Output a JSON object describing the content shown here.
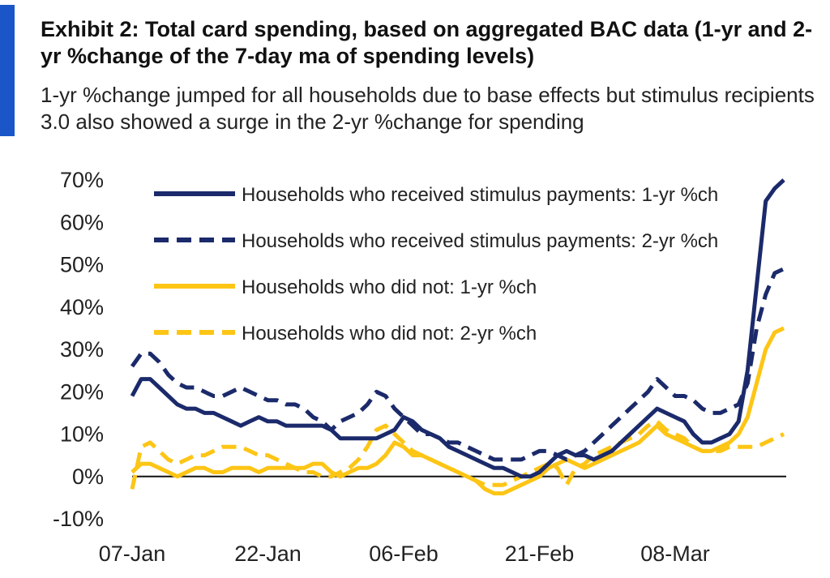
{
  "title": "Exhibit 2: Total card spending, based on aggregated BAC data (1-yr and 2-yr %change of the 7-day ma of spending levels)",
  "subtitle": "1-yr %change jumped for all households due to base effects but stimulus recipients 3.0 also showed a surge in the 2-yr %change for spending",
  "colors": {
    "accent": "#1a56c8",
    "navy": "#1b2a6b",
    "gold": "#fdc515"
  },
  "chart_data": {
    "type": "line",
    "title": "",
    "xlabel": "",
    "ylabel": "",
    "ylim": [
      -10,
      70
    ],
    "yticks": [
      "-10%",
      "0%",
      "10%",
      "20%",
      "30%",
      "40%",
      "50%",
      "60%",
      "70%"
    ],
    "xticks": [
      "07-Jan",
      "22-Jan",
      "06-Feb",
      "21-Feb",
      "08-Mar"
    ],
    "legend_position": "top-left",
    "x": [
      "01-07",
      "01-08",
      "01-09",
      "01-10",
      "01-11",
      "01-12",
      "01-13",
      "01-14",
      "01-15",
      "01-16",
      "01-17",
      "01-18",
      "01-19",
      "01-20",
      "01-21",
      "01-22",
      "01-23",
      "01-24",
      "01-25",
      "01-26",
      "01-27",
      "01-28",
      "01-29",
      "01-30",
      "01-31",
      "02-01",
      "02-02",
      "02-03",
      "02-04",
      "02-05",
      "02-06",
      "02-07",
      "02-08",
      "02-09",
      "02-10",
      "02-11",
      "02-12",
      "02-13",
      "02-14",
      "02-15",
      "02-16",
      "02-17",
      "02-18",
      "02-19",
      "02-20",
      "02-21",
      "02-22",
      "02-23",
      "02-24",
      "02-25",
      "02-26",
      "02-27",
      "02-28",
      "03-01",
      "03-02",
      "03-03",
      "03-04",
      "03-05",
      "03-06",
      "03-07",
      "03-08",
      "03-09",
      "03-10",
      "03-11",
      "03-12",
      "03-13",
      "03-14",
      "03-15",
      "03-16",
      "03-17",
      "03-18",
      "03-19",
      "03-20"
    ],
    "series": [
      {
        "name": "Households who received stimulus payments: 1-yr %ch",
        "color": "#1b2a6b",
        "style": "solid",
        "values": [
          19,
          23,
          23,
          21,
          19,
          17,
          16,
          16,
          15,
          15,
          14,
          13,
          12,
          13,
          14,
          13,
          13,
          12,
          12,
          12,
          12,
          12,
          11,
          9,
          9,
          9,
          9,
          9,
          10,
          11,
          14,
          13,
          11,
          10,
          9,
          7,
          6,
          5,
          4,
          3,
          2,
          2,
          1,
          0,
          0,
          1,
          3,
          5,
          6,
          5,
          5,
          4,
          5,
          6,
          8,
          10,
          12,
          14,
          16,
          15,
          14,
          13,
          10,
          8,
          8,
          9,
          10,
          13,
          25,
          45,
          65,
          68,
          70
        ]
      },
      {
        "name": "Households who received stimulus payments: 2-yr %ch",
        "color": "#1b2a6b",
        "style": "dashed",
        "values": [
          26,
          29,
          29,
          27,
          24,
          22,
          21,
          21,
          20,
          19,
          19,
          20,
          21,
          20,
          19,
          18,
          18,
          17,
          17,
          16,
          14,
          13,
          11,
          13,
          14,
          15,
          17,
          20,
          19,
          16,
          14,
          12,
          10,
          10,
          9,
          8,
          8,
          7,
          6,
          5,
          4,
          4,
          4,
          4,
          5,
          6,
          6,
          5,
          4,
          5,
          6,
          8,
          10,
          12,
          14,
          16,
          18,
          20,
          23,
          21,
          19,
          19,
          18,
          16,
          15,
          15,
          16,
          17,
          22,
          35,
          43,
          48,
          49
        ]
      },
      {
        "name": "Households who did not: 1-yr %ch",
        "color": "#fdc515",
        "style": "solid",
        "values": [
          1,
          3,
          3,
          2,
          1,
          0,
          1,
          2,
          2,
          1,
          1,
          2,
          2,
          2,
          1,
          2,
          2,
          2,
          2,
          2,
          3,
          3,
          1,
          0,
          1,
          2,
          2,
          3,
          5,
          8,
          7,
          5,
          5,
          4,
          3,
          2,
          1,
          0,
          -1,
          -3,
          -4,
          -4,
          -3,
          -2,
          -1,
          0,
          2,
          3,
          4,
          3,
          2,
          3,
          4,
          5,
          6,
          7,
          8,
          10,
          12,
          10,
          9,
          8,
          7,
          6,
          6,
          7,
          8,
          10,
          14,
          22,
          30,
          34,
          35
        ]
      },
      {
        "name": "Households who did not: 2-yr %ch",
        "color": "#fdc515",
        "style": "dashed",
        "values": [
          -3,
          7,
          8,
          6,
          4,
          3,
          4,
          5,
          5,
          6,
          7,
          7,
          7,
          6,
          5,
          5,
          4,
          3,
          2,
          1,
          1,
          0,
          0,
          1,
          2,
          4,
          7,
          11,
          12,
          10,
          8,
          6,
          5,
          4,
          3,
          2,
          1,
          0,
          -1,
          -2,
          -2,
          -2,
          -1,
          0,
          1,
          2,
          3,
          2,
          -2,
          2,
          3,
          5,
          6,
          7,
          8,
          9,
          10,
          12,
          13,
          11,
          10,
          9,
          7,
          6,
          6,
          6,
          7,
          7,
          7,
          7,
          8,
          9,
          10
        ]
      }
    ]
  }
}
